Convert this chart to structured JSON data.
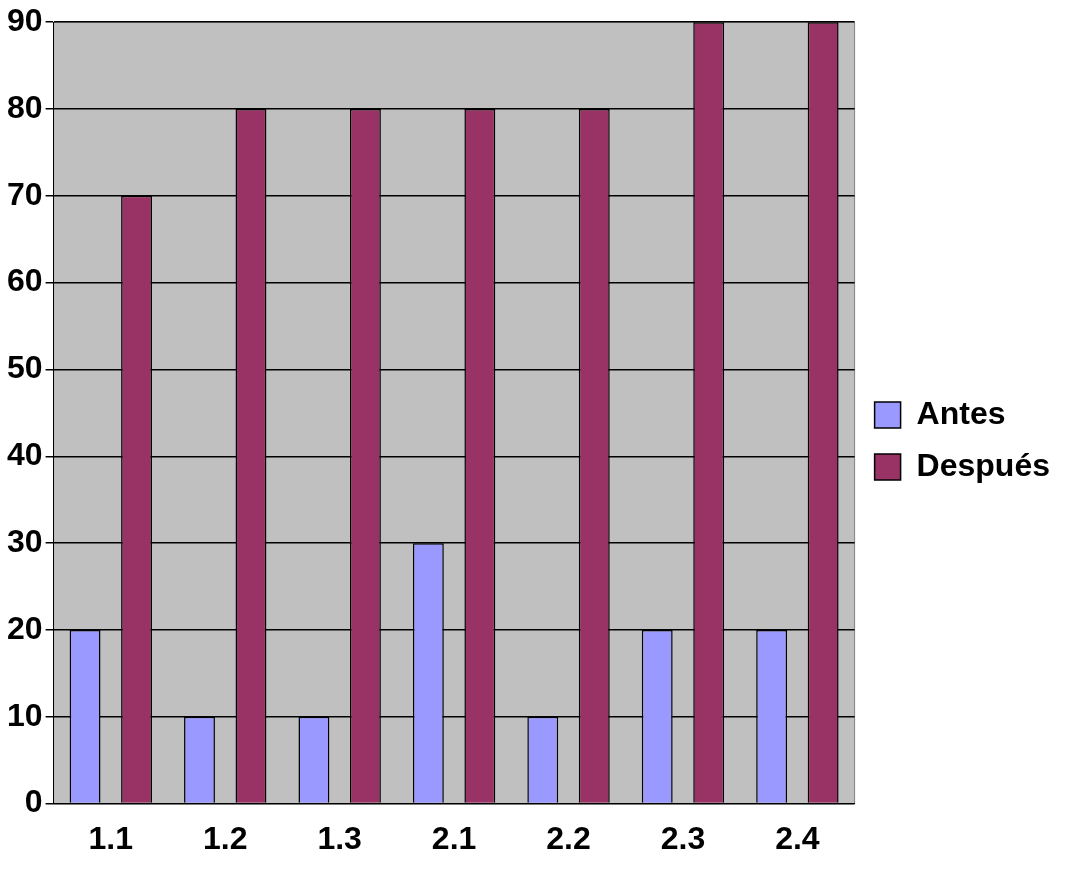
{
  "chart_data": {
    "type": "bar",
    "categories": [
      "1.1",
      "1.2",
      "1.3",
      "2.1",
      "2.2",
      "2.3",
      "2.4"
    ],
    "series": [
      {
        "name": "Antes",
        "color": "#9999ff",
        "values": [
          20,
          10,
          10,
          30,
          10,
          20,
          20
        ]
      },
      {
        "name": "Después",
        "color": "#993366",
        "values": [
          70,
          80,
          80,
          80,
          80,
          90,
          90
        ]
      }
    ],
    "ylim": [
      0,
      90
    ],
    "yticks": [
      0,
      10,
      20,
      30,
      40,
      50,
      60,
      70,
      80,
      90
    ],
    "grid": "y",
    "legend": "right"
  }
}
